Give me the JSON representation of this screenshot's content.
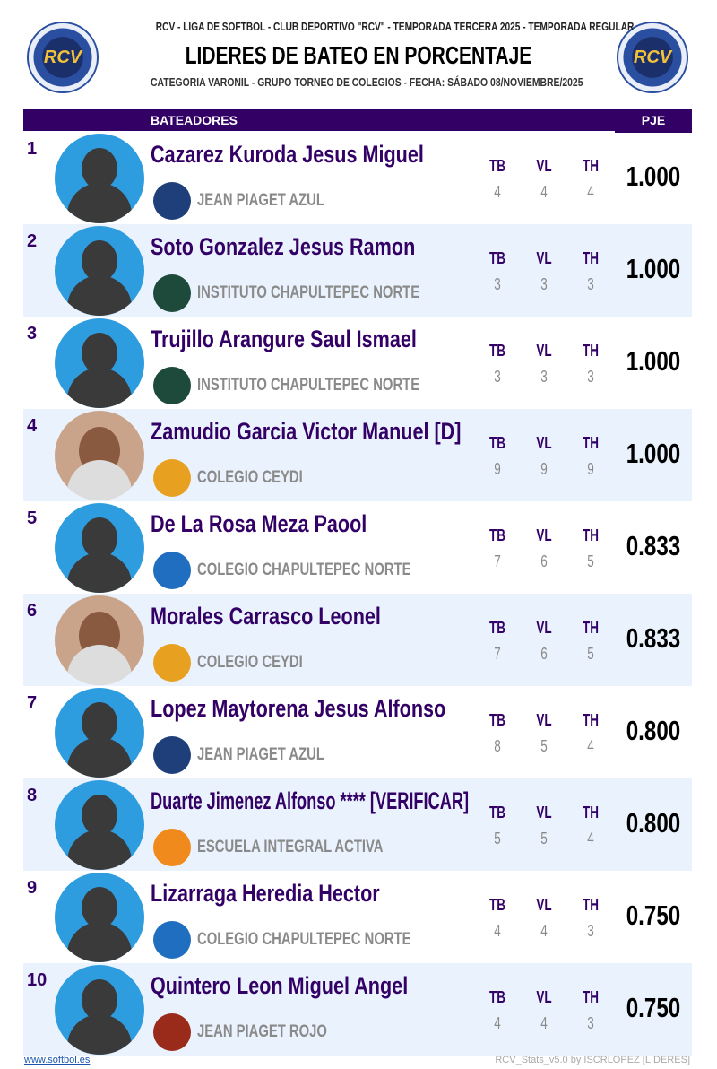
{
  "header": {
    "line1": "RCV - LIGA DE SOFTBOL - CLUB DEPORTIVO \"RCV\" - TEMPORADA TERCERA 2025 - TEMPORADA REGULAR",
    "title": "LIDERES DE BATEO EN PORCENTAJE",
    "line3": "CATEGORIA VARONIL - GRUPO TORNEO DE COLEGIOS - FECHA: SÁBADO 08/NOVIEMBRE/2025",
    "logo_text": "RCV"
  },
  "table": {
    "col_batters": "BATEADORES",
    "col_pje": "PJE",
    "stat_labels": [
      "TB",
      "VL",
      "TH"
    ]
  },
  "rows": [
    {
      "rank": "1",
      "name": "Cazarez Kuroda Jesus Miguel",
      "team": "JEAN PIAGET AZUL",
      "tb": "4",
      "vl": "4",
      "th": "4",
      "pje": "1.000",
      "team_color": "#1f3f7a"
    },
    {
      "rank": "2",
      "name": "Soto Gonzalez Jesus Ramon",
      "team": "INSTITUTO CHAPULTEPEC NORTE",
      "tb": "3",
      "vl": "3",
      "th": "3",
      "pje": "1.000",
      "team_color": "#1d4a3a"
    },
    {
      "rank": "3",
      "name": "Trujillo Arangure Saul Ismael",
      "team": "INSTITUTO CHAPULTEPEC NORTE",
      "tb": "3",
      "vl": "3",
      "th": "3",
      "pje": "1.000",
      "team_color": "#1d4a3a"
    },
    {
      "rank": "4",
      "name": "Zamudio Garcia Victor Manuel [D]",
      "team": "COLEGIO CEYDI",
      "tb": "9",
      "vl": "9",
      "th": "9",
      "pje": "1.000",
      "team_color": "#e8a020",
      "photo": true
    },
    {
      "rank": "5",
      "name": "De La Rosa Meza Paool",
      "team": "COLEGIO CHAPULTEPEC NORTE",
      "tb": "7",
      "vl": "6",
      "th": "5",
      "pje": "0.833",
      "team_color": "#1f6ec0"
    },
    {
      "rank": "6",
      "name": "Morales Carrasco Leonel",
      "team": "COLEGIO CEYDI",
      "tb": "7",
      "vl": "6",
      "th": "5",
      "pje": "0.833",
      "team_color": "#e8a020",
      "photo": true
    },
    {
      "rank": "7",
      "name": "Lopez Maytorena Jesus Alfonso",
      "team": "JEAN PIAGET AZUL",
      "tb": "8",
      "vl": "5",
      "th": "4",
      "pje": "0.800",
      "team_color": "#1f3f7a"
    },
    {
      "rank": "8",
      "name": "Duarte Jimenez Alfonso **** [VERIFICAR]",
      "team": "ESCUELA INTEGRAL ACTIVA",
      "tb": "5",
      "vl": "5",
      "th": "4",
      "pje": "0.800",
      "team_color": "#f08a1c"
    },
    {
      "rank": "9",
      "name": "Lizarraga Heredia Hector",
      "team": "COLEGIO CHAPULTEPEC NORTE",
      "tb": "4",
      "vl": "4",
      "th": "3",
      "pje": "0.750",
      "team_color": "#1f6ec0"
    },
    {
      "rank": "10",
      "name": "Quintero Leon Miguel Angel",
      "team": "JEAN PIAGET ROJO",
      "tb": "4",
      "vl": "4",
      "th": "3",
      "pje": "0.750",
      "team_color": "#9a2a1a"
    }
  ],
  "footer": {
    "link": "www.softbol.es",
    "credit": "RCV_Stats_v5.0 by ISCRLOPEZ [LIDERES]"
  },
  "colors": {
    "header_bg": "#330066",
    "alt_row": "#eaf3fd",
    "name": "#330066"
  }
}
